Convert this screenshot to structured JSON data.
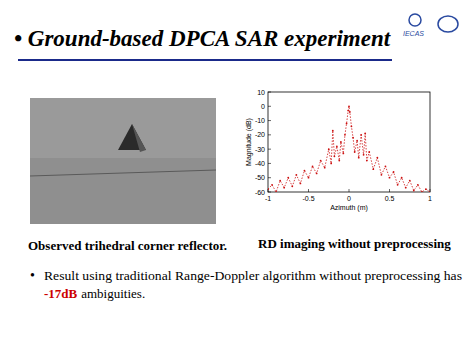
{
  "slide": {
    "title": "• Ground-based DPCA SAR experiment",
    "logo": "IECAS",
    "caption_left": "Observed trihedral corner reflector.",
    "caption_right": "RD imaging without preprocessing",
    "bullet": {
      "marker": "•",
      "text": "Result using traditional Range-Doppler algorithm without preprocessing has",
      "highlight": "-17dB",
      "tail": "ambiguities."
    }
  },
  "chart_data": {
    "type": "line",
    "x_label": "Azimuth (m)",
    "y_label": "Magnitude (dB)",
    "x": [
      -1.0,
      -0.95,
      -0.9,
      -0.85,
      -0.8,
      -0.75,
      -0.7,
      -0.65,
      -0.6,
      -0.55,
      -0.5,
      -0.45,
      -0.4,
      -0.35,
      -0.3,
      -0.25,
      -0.22,
      -0.2,
      -0.18,
      -0.15,
      -0.12,
      -0.1,
      -0.07,
      -0.05,
      -0.03,
      -0.01,
      0,
      0.01,
      0.03,
      0.05,
      0.07,
      0.1,
      0.12,
      0.15,
      0.18,
      0.2,
      0.22,
      0.25,
      0.3,
      0.35,
      0.4,
      0.45,
      0.5,
      0.55,
      0.6,
      0.65,
      0.7,
      0.75,
      0.8,
      0.85,
      0.9,
      0.95,
      1.0
    ],
    "series": [
      {
        "color": "#cc1111",
        "line_style": "dotted",
        "marker": "dot",
        "values": [
          -58,
          -55,
          -60,
          -52,
          -57,
          -50,
          -56,
          -48,
          -54,
          -45,
          -50,
          -42,
          -47,
          -38,
          -43,
          -30,
          -40,
          -17,
          -35,
          -28,
          -38,
          -25,
          -33,
          -20,
          -12,
          -3,
          0,
          -4,
          -14,
          -22,
          -32,
          -24,
          -36,
          -20,
          -34,
          -19,
          -38,
          -32,
          -44,
          -36,
          -48,
          -42,
          -50,
          -46,
          -55,
          -50,
          -57,
          -52,
          -59,
          -55,
          -60,
          -58,
          -60
        ]
      }
    ],
    "xlim": [
      -1,
      1
    ],
    "ylim": [
      -60,
      10
    ],
    "xticks": [
      -1,
      -0.5,
      0,
      0.5,
      1
    ],
    "yticks": [
      -60,
      -50,
      -40,
      -30,
      -20,
      -10,
      0,
      10
    ],
    "grid": false
  }
}
